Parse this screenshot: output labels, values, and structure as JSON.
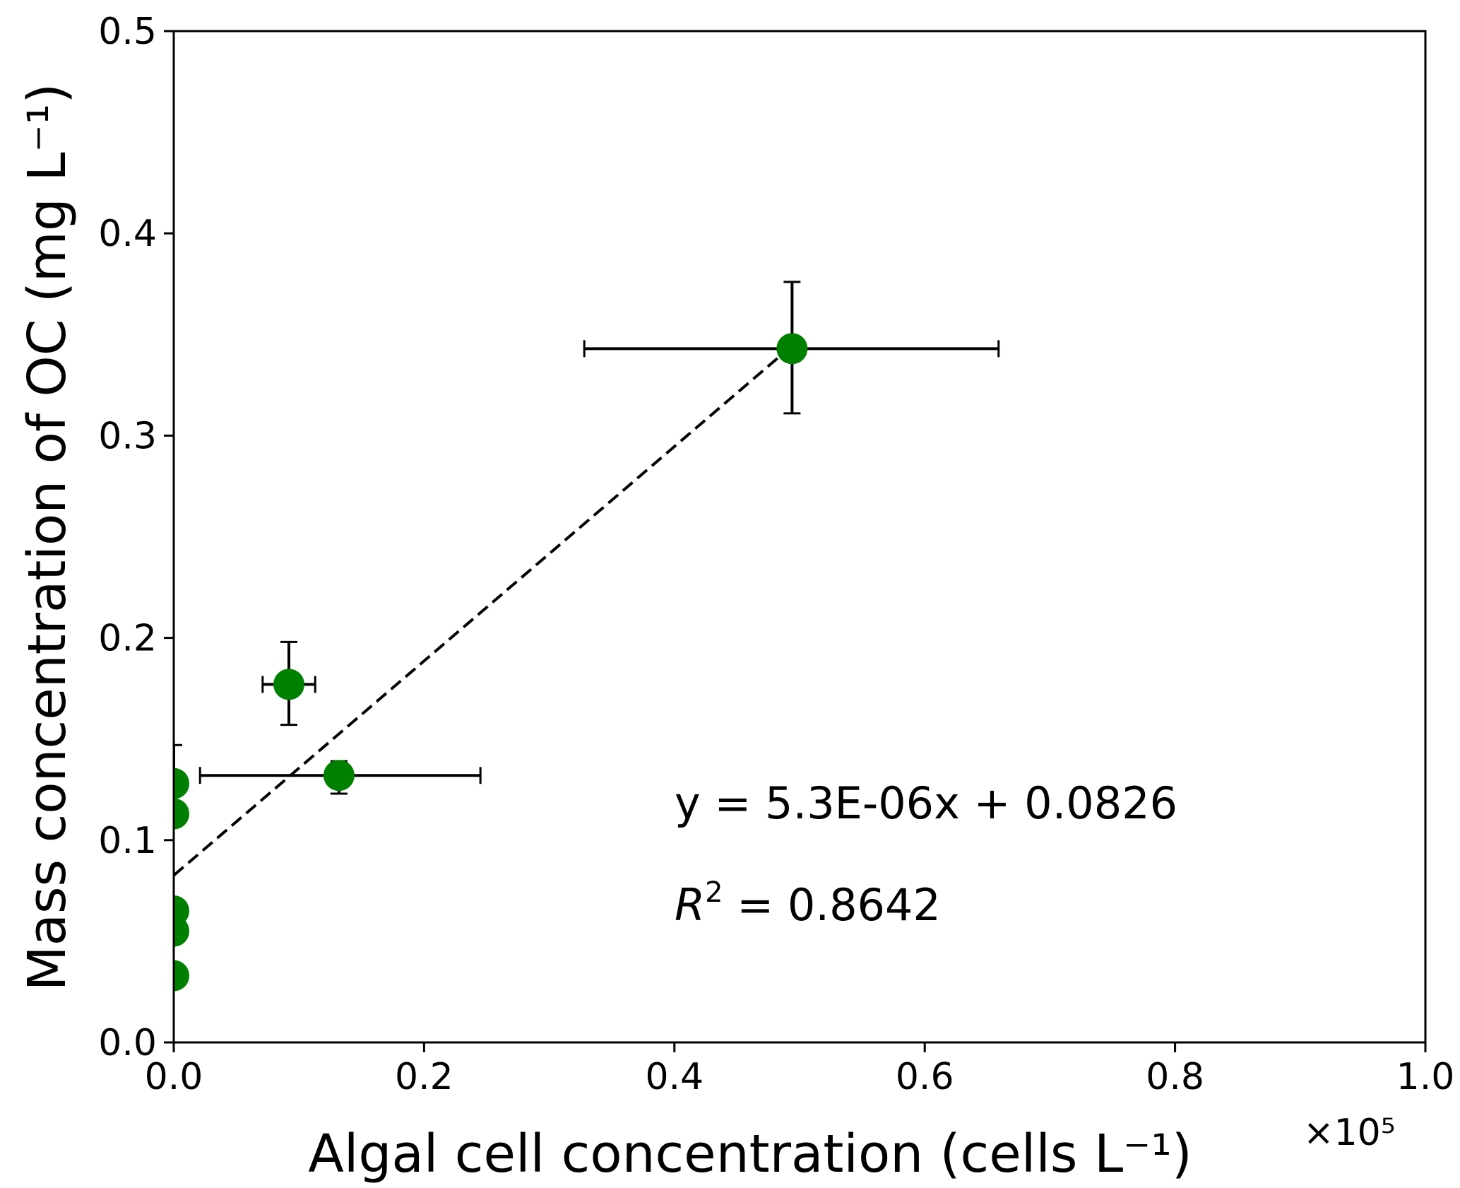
{
  "chart_data": {
    "type": "scatter",
    "xlabel": "Algal cell concentration (cells L⁻¹)",
    "x_multiplier": "×10⁵",
    "ylabel": "Mass concentration of OC (mg L⁻¹)",
    "xlim": [
      0,
      1.0
    ],
    "ylim": [
      0,
      0.5
    ],
    "xticks": [
      "0.0",
      "0.2",
      "0.4",
      "0.6",
      "0.8",
      "1.0"
    ],
    "yticks": [
      "0.0",
      "0.1",
      "0.2",
      "0.3",
      "0.4",
      "0.5"
    ],
    "grid": false,
    "marker_color": "#008000",
    "points": [
      {
        "x": 0.494,
        "y": 0.343,
        "xerr": [
          0.328,
          0.659
        ],
        "yerr": [
          0.311,
          0.376
        ]
      },
      {
        "x": 0.092,
        "y": 0.177,
        "xerr": [
          0.071,
          0.113
        ],
        "yerr": [
          0.157,
          0.198
        ]
      },
      {
        "x": 0.132,
        "y": 0.132,
        "xerr": [
          0.021,
          0.245
        ],
        "yerr": [
          0.123,
          0.139
        ]
      },
      {
        "x": 0.0,
        "y": 0.128,
        "yerr": [
          0.109,
          0.147
        ]
      },
      {
        "x": 0.0,
        "y": 0.113
      },
      {
        "x": 0.0,
        "y": 0.065,
        "yerr": [
          0.061,
          0.069
        ]
      },
      {
        "x": 0.0,
        "y": 0.055
      },
      {
        "x": 0.0,
        "y": 0.033
      }
    ],
    "fit": {
      "slope_per_1e5": 0.53,
      "intercept": 0.0826,
      "x_range": [
        0,
        0.494
      ],
      "style": "dashed"
    },
    "annotations": {
      "equation": "y = 5.3E-06x + 0.0826",
      "r2_label": "R",
      "r2_sup": "2",
      "r2_value": " = 0.8642"
    }
  }
}
